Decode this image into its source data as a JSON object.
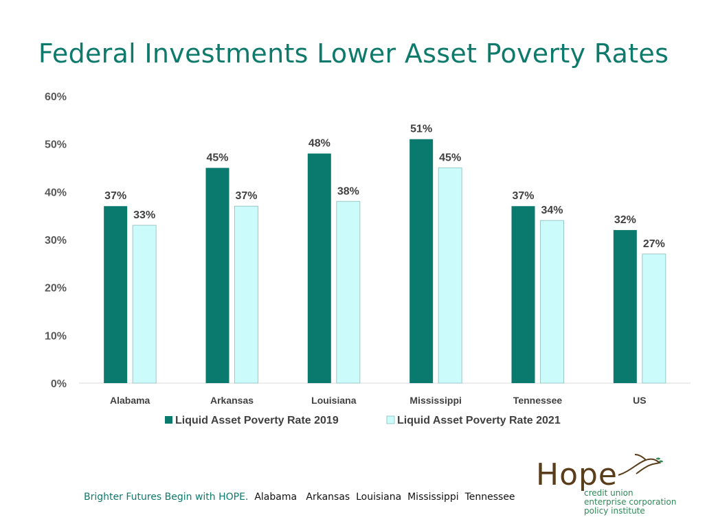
{
  "title": "Federal Investments Lower Asset Poverty Rates",
  "colors": {
    "series_2019": "#0b7a6e",
    "series_2021": "#ccfbfb",
    "title": "#0e7a6c"
  },
  "chart_data": {
    "type": "bar",
    "categories": [
      "Alabama",
      "Arkansas",
      "Louisiana",
      "Mississippi",
      "Tennessee",
      "US"
    ],
    "series": [
      {
        "name": "Liquid Asset Poverty Rate 2019",
        "values": [
          37,
          45,
          48,
          51,
          37,
          32
        ],
        "labels": [
          "37%",
          "45%",
          "48%",
          "51%",
          "37%",
          "32%"
        ]
      },
      {
        "name": "Liquid Asset Poverty Rate 2021",
        "values": [
          33,
          37,
          38,
          45,
          34,
          27
        ],
        "labels": [
          "33%",
          "37%",
          "38%",
          "45%",
          "34%",
          "27%"
        ]
      }
    ],
    "ylim": [
      0,
      60
    ],
    "yticks": [
      0,
      10,
      20,
      30,
      40,
      50,
      60
    ],
    "ytick_labels": [
      "0%",
      "10%",
      "20%",
      "30%",
      "40%",
      "50%",
      "60%"
    ],
    "grid": false,
    "legend_position": "bottom"
  },
  "footer": {
    "tagline": "Brighter Futures Begin with HOPE.",
    "states": "Alabama   Arkansas  Louisiana  Mississippi  Tennessee"
  },
  "logo": {
    "word": "Hope",
    "line1": "credit union",
    "line2": "enterprise corporation",
    "line3": "policy institute"
  }
}
